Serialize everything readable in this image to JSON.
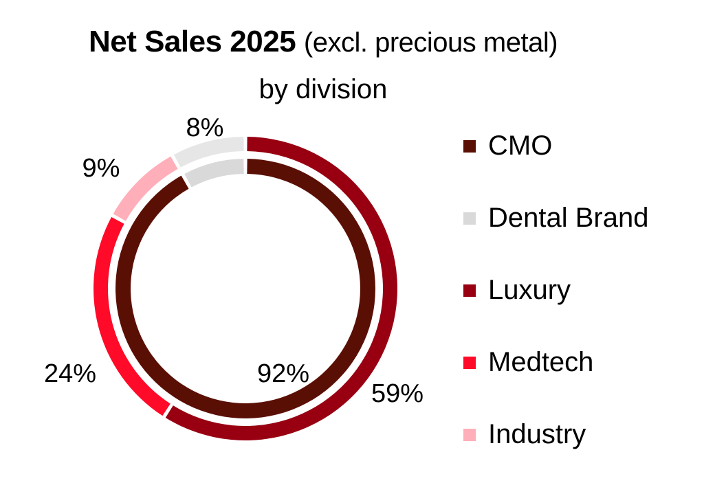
{
  "chart_data": {
    "type": "pie",
    "subtype": "nested-donut",
    "title": "Net Sales 2025",
    "title_suffix": "(excl. precious metal)",
    "subtitle": "by division",
    "legend_position": "right",
    "series": [
      {
        "name": "Inner ring",
        "ring": "inner",
        "slices": [
          {
            "label": "CMO",
            "value": 92,
            "display": "92%",
            "color": "#5a0f05"
          },
          {
            "label": "Dental Brand",
            "value": 8,
            "display": "",
            "color": "#d9d9d9"
          }
        ]
      },
      {
        "name": "Outer ring",
        "ring": "outer",
        "slices": [
          {
            "label": "Luxury",
            "value": 59,
            "display": "59%",
            "color": "#980012"
          },
          {
            "label": "Medtech",
            "value": 24,
            "display": "24%",
            "color": "#ff0a28"
          },
          {
            "label": "Industry",
            "value": 9,
            "display": "9%",
            "color": "#ffafb9"
          },
          {
            "label": "Dental Brand",
            "value": 8,
            "display": "8%",
            "color": "#e6e6e6"
          }
        ]
      }
    ],
    "legend": [
      {
        "label": "CMO",
        "color": "#5a0f05"
      },
      {
        "label": "Dental Brand",
        "color": "#d9d9d9"
      },
      {
        "label": "Luxury",
        "color": "#980012"
      },
      {
        "label": "Medtech",
        "color": "#ff0a28"
      },
      {
        "label": "Industry",
        "color": "#ffafb9"
      }
    ]
  }
}
